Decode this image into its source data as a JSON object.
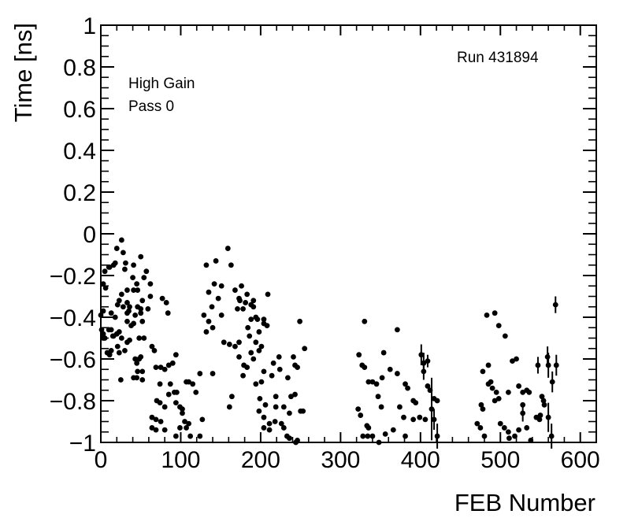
{
  "annotations": {
    "run": "Run 431894",
    "gain": "High Gain",
    "pass": "Pass 0"
  },
  "chart_data": {
    "type": "scatter",
    "title": "",
    "xlabel": "FEB Number",
    "ylabel": "Time [ns]",
    "xlim": [
      0,
      620
    ],
    "ylim": [
      -1,
      1
    ],
    "grid": false,
    "legend": "none",
    "marker": {
      "shape": "circle",
      "color": "#000000",
      "radius_px": 3.4
    },
    "x_ticks": {
      "major_values": [
        0,
        100,
        200,
        300,
        400,
        500,
        600
      ],
      "major_labels": [
        "0",
        "100",
        "200",
        "300",
        "400",
        "500",
        "600"
      ],
      "minor_step": 20
    },
    "y_ticks": {
      "major_values": [
        1,
        0.8,
        0.6,
        0.4,
        0.2,
        0,
        -0.2,
        -0.4,
        -0.6,
        -0.8,
        -1
      ],
      "major_labels": [
        "1",
        "0.8",
        "0.6",
        "0.4",
        "0.2",
        "0",
        "−0.2",
        "−0.4",
        "−0.6",
        "−0.8",
        "−1"
      ],
      "minor_step": 0.05
    },
    "points": [
      [
        26,
        -0.03
      ],
      [
        20,
        -0.07
      ],
      [
        28,
        -0.09
      ],
      [
        50,
        -0.11
      ],
      [
        16,
        -0.15
      ],
      [
        31,
        -0.14
      ],
      [
        10,
        -0.16
      ],
      [
        11,
        -0.16
      ],
      [
        5,
        -0.18
      ],
      [
        18,
        -0.14
      ],
      [
        57,
        -0.18
      ],
      [
        40,
        -0.21
      ],
      [
        3,
        -0.24
      ],
      [
        54,
        -0.21
      ],
      [
        62,
        -0.24
      ],
      [
        33,
        -0.27
      ],
      [
        26,
        -0.29
      ],
      [
        41,
        -0.27
      ],
      [
        46,
        -0.27
      ],
      [
        6,
        -0.26
      ],
      [
        30,
        -0.17
      ],
      [
        41,
        -0.15
      ],
      [
        45,
        -0.24
      ],
      [
        52,
        -0.32
      ],
      [
        62,
        -0.3
      ],
      [
        77,
        -0.31
      ],
      [
        82,
        -0.33
      ],
      [
        21,
        -0.34
      ],
      [
        28,
        -0.35
      ],
      [
        36,
        -0.35
      ],
      [
        23,
        -0.32
      ],
      [
        33,
        -0.33
      ],
      [
        50,
        -0.38
      ],
      [
        43,
        -0.39
      ],
      [
        33,
        -0.38
      ],
      [
        59,
        -0.36
      ],
      [
        84,
        -0.38
      ],
      [
        3,
        -0.37
      ],
      [
        0,
        -0.39
      ],
      [
        13,
        -0.38
      ],
      [
        18,
        -0.4
      ],
      [
        35,
        -0.37
      ],
      [
        46,
        -0.35
      ],
      [
        50,
        -0.36
      ],
      [
        52,
        -0.42
      ],
      [
        41,
        -0.43
      ],
      [
        13,
        -0.46
      ],
      [
        23,
        -0.47
      ],
      [
        33,
        -0.42
      ],
      [
        38,
        -0.44
      ],
      [
        1,
        -0.46
      ],
      [
        20,
        -0.48
      ],
      [
        3,
        -0.48
      ],
      [
        10,
        -0.46
      ],
      [
        16,
        -0.49
      ],
      [
        5,
        -0.5
      ],
      [
        3,
        -0.5
      ],
      [
        15,
        -0.49
      ],
      [
        26,
        -0.5
      ],
      [
        36,
        -0.51
      ],
      [
        54,
        -0.5
      ],
      [
        48,
        -0.5
      ],
      [
        64,
        -0.54
      ],
      [
        67,
        -0.56
      ],
      [
        21,
        -0.54
      ],
      [
        13,
        -0.56
      ],
      [
        8,
        -0.57
      ],
      [
        33,
        -0.52
      ],
      [
        30,
        -0.56
      ],
      [
        50,
        -0.59
      ],
      [
        45,
        -0.62
      ],
      [
        52,
        -0.66
      ],
      [
        41,
        -0.69
      ],
      [
        11,
        -0.58
      ],
      [
        23,
        -0.57
      ],
      [
        43,
        -0.6
      ],
      [
        48,
        -0.6
      ],
      [
        69,
        -0.64
      ],
      [
        75,
        -0.64
      ],
      [
        80,
        -0.65
      ],
      [
        85,
        -0.63
      ],
      [
        90,
        -0.62
      ],
      [
        94,
        -0.58
      ],
      [
        46,
        -0.66
      ],
      [
        25,
        -0.7
      ],
      [
        45,
        -0.69
      ],
      [
        52,
        -0.7
      ],
      [
        74,
        -0.72
      ],
      [
        87,
        -0.72
      ],
      [
        92,
        -0.76
      ],
      [
        85,
        -0.77
      ],
      [
        95,
        -0.76
      ],
      [
        70,
        -0.8
      ],
      [
        74,
        -0.81
      ],
      [
        80,
        -0.83
      ],
      [
        94,
        -0.81
      ],
      [
        99,
        -0.83
      ],
      [
        102,
        -0.84
      ],
      [
        107,
        -0.71
      ],
      [
        110,
        -0.71
      ],
      [
        115,
        -0.72
      ],
      [
        124,
        -0.67
      ],
      [
        119,
        -0.76
      ],
      [
        102,
        -0.86
      ],
      [
        105,
        -0.9
      ],
      [
        110,
        -0.91
      ],
      [
        64,
        -0.88
      ],
      [
        69,
        -0.89
      ],
      [
        75,
        -0.9
      ],
      [
        64,
        -0.93
      ],
      [
        69,
        -0.94
      ],
      [
        80,
        -0.94
      ],
      [
        94,
        -0.97
      ],
      [
        99,
        -0.93
      ],
      [
        107,
        -0.93
      ],
      [
        112,
        -0.97
      ],
      [
        124,
        -0.97
      ],
      [
        127,
        -0.89
      ],
      [
        159,
        -0.07
      ],
      [
        132,
        -0.15
      ],
      [
        144,
        -0.13
      ],
      [
        163,
        -0.15
      ],
      [
        140,
        -0.67
      ],
      [
        142,
        -0.24
      ],
      [
        151,
        -0.25
      ],
      [
        135,
        -0.28
      ],
      [
        147,
        -0.31
      ],
      [
        168,
        -0.27
      ],
      [
        176,
        -0.25
      ],
      [
        183,
        -0.29
      ],
      [
        173,
        -0.31
      ],
      [
        191,
        -0.35
      ],
      [
        139,
        -0.35
      ],
      [
        129,
        -0.39
      ],
      [
        151,
        -0.39
      ],
      [
        135,
        -0.42
      ],
      [
        140,
        -0.45
      ],
      [
        132,
        -0.47
      ],
      [
        178,
        -0.36
      ],
      [
        188,
        -0.41
      ],
      [
        194,
        -0.4
      ],
      [
        184,
        -0.45
      ],
      [
        198,
        -0.47
      ],
      [
        174,
        -0.32
      ],
      [
        181,
        -0.33
      ],
      [
        191,
        -0.32
      ],
      [
        209,
        -0.29
      ],
      [
        188,
        -0.34
      ],
      [
        171,
        -0.36
      ],
      [
        196,
        -0.41
      ],
      [
        204,
        -0.43
      ],
      [
        154,
        -0.52
      ],
      [
        161,
        -0.53
      ],
      [
        168,
        -0.54
      ],
      [
        173,
        -0.52
      ],
      [
        186,
        -0.49
      ],
      [
        194,
        -0.52
      ],
      [
        198,
        -0.56
      ],
      [
        164,
        -0.78
      ],
      [
        161,
        -0.83
      ],
      [
        178,
        -0.68
      ],
      [
        173,
        -0.59
      ],
      [
        179,
        -0.63
      ],
      [
        188,
        -0.57
      ],
      [
        191,
        -0.6
      ],
      [
        183,
        -0.64
      ],
      [
        194,
        -0.72
      ],
      [
        199,
        -0.79
      ],
      [
        198,
        -0.85
      ],
      [
        204,
        -0.41
      ],
      [
        208,
        -0.44
      ],
      [
        249,
        -0.42
      ],
      [
        201,
        -0.54
      ],
      [
        255,
        -0.55
      ],
      [
        223,
        -0.59
      ],
      [
        241,
        -0.59
      ],
      [
        216,
        -0.62
      ],
      [
        243,
        -0.63
      ],
      [
        224,
        -0.65
      ],
      [
        246,
        -0.64
      ],
      [
        204,
        -0.66
      ],
      [
        201,
        -0.71
      ],
      [
        214,
        -0.68
      ],
      [
        234,
        -0.69
      ],
      [
        219,
        -0.78
      ],
      [
        238,
        -0.78
      ],
      [
        243,
        -0.77
      ],
      [
        206,
        -0.82
      ],
      [
        219,
        -0.83
      ],
      [
        229,
        -0.83
      ],
      [
        236,
        -0.86
      ],
      [
        250,
        -0.85
      ],
      [
        253,
        -0.85
      ],
      [
        204,
        -0.88
      ],
      [
        211,
        -0.91
      ],
      [
        218,
        -0.9
      ],
      [
        226,
        -0.91
      ],
      [
        229,
        -0.93
      ],
      [
        211,
        -0.94
      ],
      [
        204,
        -0.93
      ],
      [
        233,
        -0.97
      ],
      [
        236,
        -0.98
      ],
      [
        244,
        -1
      ],
      [
        246,
        -0.99
      ],
      [
        330,
        -0.42
      ],
      [
        371,
        -0.46
      ],
      [
        323,
        -0.58
      ],
      [
        354,
        -0.57
      ],
      [
        327,
        -0.63
      ],
      [
        330,
        -0.64
      ],
      [
        362,
        -0.65
      ],
      [
        371,
        -0.67
      ],
      [
        335,
        -0.71
      ],
      [
        340,
        -0.71
      ],
      [
        345,
        -0.72
      ],
      [
        352,
        -0.69
      ],
      [
        381,
        -0.72
      ],
      [
        384,
        -0.74
      ],
      [
        347,
        -0.78
      ],
      [
        351,
        -0.83
      ],
      [
        374,
        -0.83
      ],
      [
        391,
        -0.8
      ],
      [
        394,
        -0.81
      ],
      [
        379,
        -0.88
      ],
      [
        391,
        -0.89
      ],
      [
        399,
        -0.88
      ],
      [
        322,
        -0.84
      ],
      [
        325,
        -0.87
      ],
      [
        333,
        -0.92
      ],
      [
        335,
        -0.93
      ],
      [
        328,
        -0.97
      ],
      [
        334,
        -0.97
      ],
      [
        340,
        -0.97
      ],
      [
        348,
        -1
      ],
      [
        356,
        -0.96
      ],
      [
        366,
        -0.94
      ],
      [
        381,
        -0.97
      ],
      [
        406,
        -0.89
      ],
      [
        409,
        -0.73
      ],
      [
        412,
        -0.75
      ],
      [
        417,
        -0.79
      ],
      [
        421,
        -0.8
      ],
      [
        483,
        -0.39
      ],
      [
        493,
        -0.38
      ],
      [
        498,
        -0.44
      ],
      [
        506,
        -0.49
      ],
      [
        515,
        -0.61
      ],
      [
        520,
        -0.6
      ],
      [
        485,
        -0.63
      ],
      [
        478,
        -0.66
      ],
      [
        485,
        -0.72
      ],
      [
        488,
        -0.71
      ],
      [
        490,
        -0.74
      ],
      [
        495,
        -0.76
      ],
      [
        498,
        -0.79
      ],
      [
        493,
        -0.8
      ],
      [
        510,
        -0.76
      ],
      [
        523,
        -0.73
      ],
      [
        528,
        -0.76
      ],
      [
        533,
        -0.75
      ],
      [
        536,
        -0.76
      ],
      [
        476,
        -0.82
      ],
      [
        478,
        -0.84
      ],
      [
        528,
        -0.82
      ],
      [
        552,
        -0.78
      ],
      [
        554,
        -0.8
      ],
      [
        555,
        -0.82
      ],
      [
        550,
        -0.87
      ],
      [
        545,
        -0.88
      ],
      [
        549,
        -0.89
      ],
      [
        471,
        -0.91
      ],
      [
        475,
        -0.93
      ],
      [
        480,
        -0.97
      ],
      [
        500,
        -0.91
      ],
      [
        505,
        -0.93
      ],
      [
        510,
        -0.95
      ],
      [
        511,
        -0.98
      ],
      [
        518,
        -0.97
      ],
      [
        523,
        -0.94
      ],
      [
        533,
        -0.93
      ],
      [
        538,
        -0.99
      ]
    ],
    "error_points": [
      [
        401,
        -0.58,
        0.05
      ],
      [
        404,
        -0.62,
        0.05
      ],
      [
        404,
        -0.66,
        0.04
      ],
      [
        409,
        -0.61,
        0.03
      ],
      [
        414,
        -0.84,
        0.15
      ],
      [
        417,
        -0.89,
        0.05
      ],
      [
        421,
        -0.97,
        0.06
      ],
      [
        528,
        -0.86,
        0.04
      ],
      [
        547,
        -0.63,
        0.04
      ],
      [
        559,
        -0.59,
        0.05
      ],
      [
        560,
        -0.63,
        0.06
      ],
      [
        570,
        -0.63,
        0.05
      ],
      [
        565,
        -0.71,
        0.05
      ],
      [
        560,
        -0.88,
        0.07
      ],
      [
        564,
        -0.97,
        0.06
      ],
      [
        569,
        -0.34,
        0.04
      ]
    ]
  }
}
